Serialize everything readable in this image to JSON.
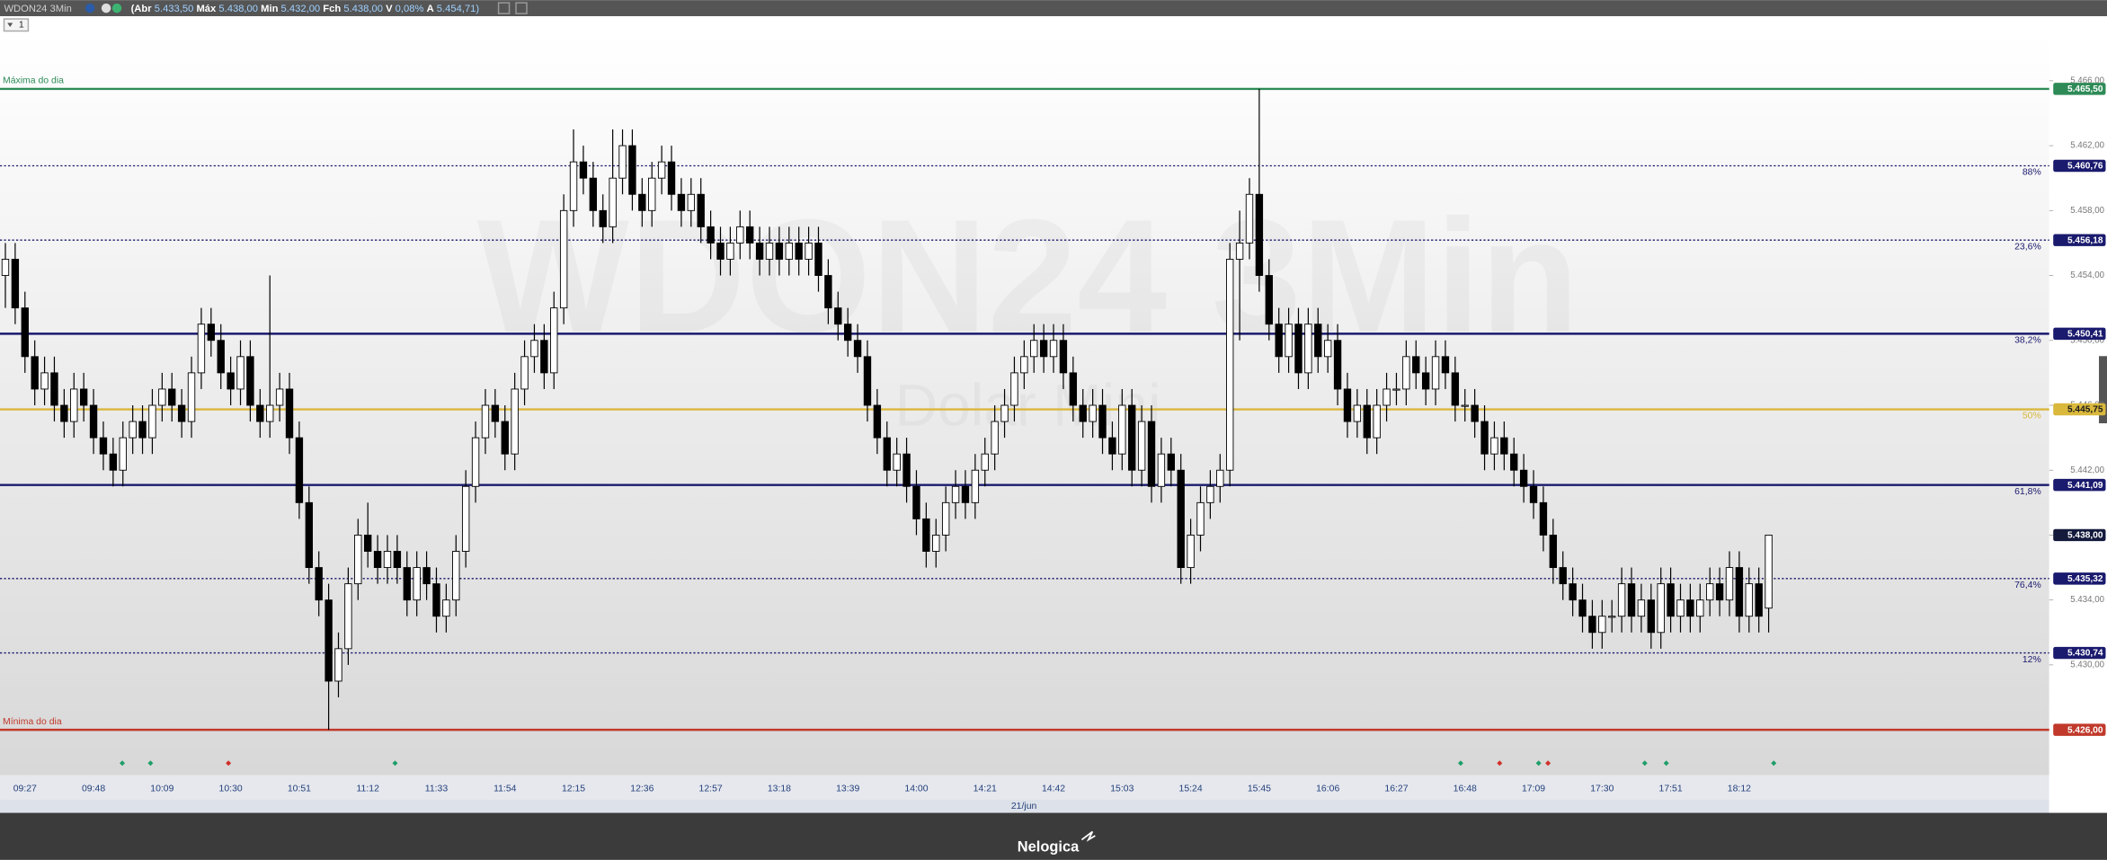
{
  "header": {
    "symbol": "WDON24 3Min",
    "open_label": "(Abr",
    "open": "5.433,50",
    "high_label": "Máx",
    "high": "5.438,00",
    "low_label": "Min",
    "low": "5.432,00",
    "close_label": "Fch",
    "close": "5.438,00",
    "var_label": "V",
    "var": "0,08%",
    "avg_label": "A",
    "avg": "5.454,71)"
  },
  "toolbar": {
    "button": "1"
  },
  "footer": {
    "brand": "Nelogica"
  },
  "chart_data": {
    "type": "candlestick",
    "watermark": "WDON24 3Min",
    "watermark_subtitle": "Dolar Mini",
    "date_label": "21/jun",
    "up_color": "#ffffff",
    "down_color": "#000000",
    "ylim": [
      5423.2,
      5468.9
    ],
    "yticks": [
      {
        "value": 5430,
        "label": "5.430,00"
      },
      {
        "value": 5434,
        "label": "5.434,00"
      },
      {
        "value": 5438,
        "label": "5.438,00"
      },
      {
        "value": 5442,
        "label": "5.442,00"
      },
      {
        "value": 5446,
        "label": "5.446,00"
      },
      {
        "value": 5450,
        "label": "5.450,00"
      },
      {
        "value": 5454,
        "label": "5.454,00"
      },
      {
        "value": 5458,
        "label": "5.458,00"
      },
      {
        "value": 5462,
        "label": "5.462,00"
      },
      {
        "value": 5466,
        "label": "5.466,00"
      }
    ],
    "levels": [
      {
        "name": "Máxima do dia",
        "value": 5465.5,
        "label": "5.465,50",
        "color": "#2e8b57",
        "style": "solid",
        "side": "left"
      },
      {
        "name": "88%",
        "value": 5460.76,
        "label": "5.460,76",
        "color": "#1a1a6e",
        "style": "dotted",
        "side": "right"
      },
      {
        "name": "23,6%",
        "value": 5456.18,
        "label": "5.456,18",
        "color": "#1a1a6e",
        "style": "dotted",
        "side": "right"
      },
      {
        "name": "38,2%",
        "value": 5450.41,
        "label": "5.450,41",
        "color": "#1a1a6e",
        "style": "solid",
        "side": "right"
      },
      {
        "name": "50%",
        "value": 5445.75,
        "label": "5.445,75",
        "color": "#d9b83c",
        "style": "solid",
        "side": "right"
      },
      {
        "name": "61,8%",
        "value": 5441.09,
        "label": "5.441,09",
        "color": "#1a1a6e",
        "style": "solid",
        "side": "right"
      },
      {
        "name": "76,4%",
        "value": 5435.32,
        "label": "5.435,32",
        "color": "#1a1a6e",
        "style": "dotted",
        "side": "right"
      },
      {
        "name": "12%",
        "value": 5430.74,
        "label": "5.430,74",
        "color": "#1a1a6e",
        "style": "dotted",
        "side": "right"
      },
      {
        "name": "Mínima do dia",
        "value": 5426,
        "label": "5.426,00",
        "color": "#c0392b",
        "style": "solid",
        "side": "left"
      }
    ],
    "last": {
      "value": 5438,
      "label": "5.438,00",
      "color": "#141a3c"
    },
    "categories": [
      null,
      null,
      "09:27",
      null,
      null,
      null,
      null,
      null,
      null,
      "09:48",
      null,
      null,
      null,
      null,
      null,
      null,
      "10:09",
      null,
      null,
      null,
      null,
      null,
      null,
      "10:30",
      null,
      null,
      null,
      null,
      null,
      null,
      "10:51",
      null,
      null,
      null,
      null,
      null,
      null,
      "11:12",
      null,
      null,
      null,
      null,
      null,
      null,
      "11:33",
      null,
      null,
      null,
      null,
      null,
      null,
      "11:54",
      null,
      null,
      null,
      null,
      null,
      null,
      "12:15",
      null,
      null,
      null,
      null,
      null,
      null,
      "12:36",
      null,
      null,
      null,
      null,
      null,
      null,
      "12:57",
      null,
      null,
      null,
      null,
      null,
      null,
      "13:18",
      null,
      null,
      null,
      null,
      null,
      null,
      "13:39",
      null,
      null,
      null,
      null,
      null,
      null,
      "14:00",
      null,
      null,
      null,
      null,
      null,
      null,
      "14:21",
      null,
      null,
      null,
      null,
      null,
      null,
      "14:42",
      null,
      null,
      null,
      null,
      null,
      null,
      "15:03",
      null,
      null,
      null,
      null,
      null,
      null,
      "15:24",
      null,
      null,
      null,
      null,
      null,
      null,
      "15:45",
      null,
      null,
      null,
      null,
      null,
      null,
      "16:06",
      null,
      null,
      null,
      null,
      null,
      null,
      "16:27",
      null,
      null,
      null,
      null,
      null,
      null,
      "16:48",
      null,
      null,
      null,
      null,
      null,
      null,
      "17:09",
      null,
      null,
      null,
      null,
      null,
      null,
      "17:30",
      null,
      null,
      null,
      null,
      null,
      null,
      "17:51",
      null,
      null,
      null,
      null,
      null,
      null,
      "18:12",
      null,
      null,
      null
    ],
    "open": [
      5454,
      5455,
      5452,
      5449,
      5447,
      5448,
      5446,
      5445,
      5447,
      5446,
      5444,
      5443,
      5442,
      5444,
      5445,
      5444,
      5446,
      5447,
      5446,
      5445,
      5448,
      5451,
      5450,
      5448,
      5447,
      5449,
      5446,
      5445,
      5446,
      5447,
      5444,
      5440,
      5436,
      5434,
      5429,
      5431,
      5435,
      5438,
      5437,
      5436,
      5437,
      5436,
      5434,
      5436,
      5435,
      5433,
      5434,
      5437,
      5441,
      5444,
      5446,
      5445,
      5443,
      5447,
      5449,
      5450,
      5448,
      5452,
      5458,
      5461,
      5460,
      5458,
      5457,
      5460,
      5462,
      5459,
      5458,
      5460,
      5461,
      5459,
      5458,
      5459,
      5457,
      5456,
      5455,
      5456,
      5457,
      5456,
      5455,
      5456,
      5455,
      5456,
      5455,
      5456,
      5454,
      5452,
      5451,
      5450,
      5449,
      5446,
      5444,
      5442,
      5443,
      5441,
      5439,
      5437,
      5438,
      5440,
      5441,
      5440,
      5442,
      5443,
      5445,
      5446,
      5448,
      5449,
      5450,
      5449,
      5450,
      5448,
      5446,
      5445,
      5446,
      5444,
      5443,
      5446,
      5442,
      5445,
      5441,
      5443,
      5442,
      5436,
      5438,
      5440,
      5441,
      5442,
      5455,
      5456,
      5459,
      5454,
      5451,
      5449,
      5451,
      5448,
      5451,
      5449,
      5450,
      5447,
      5445,
      5446,
      5444,
      5446,
      5447,
      5447,
      5449,
      5448,
      5447,
      5449,
      5448,
      5446,
      5446,
      5445,
      5443,
      5444,
      5443,
      5442,
      5441,
      5440,
      5438,
      5436,
      5435,
      5434,
      5433,
      5432,
      5433,
      5433,
      5435,
      5433,
      5434,
      5432,
      5435,
      5433,
      5434,
      5433,
      5434,
      5435,
      5434,
      5436,
      5433,
      5435,
      5433.5
    ],
    "high": [
      5456,
      5456,
      5453,
      5450,
      5449,
      5449,
      5447,
      5448,
      5448,
      5447,
      5445,
      5444,
      5445,
      5446,
      5446,
      5447,
      5448,
      5448,
      5447,
      5449,
      5452,
      5452,
      5451,
      5449,
      5450,
      5450,
      5447,
      5454,
      5448,
      5448,
      5445,
      5441,
      5437,
      5435,
      5432,
      5436,
      5439,
      5440,
      5438,
      5438,
      5438,
      5437,
      5437,
      5437,
      5436,
      5435,
      5438,
      5442,
      5445,
      5447,
      5447,
      5446,
      5448,
      5450,
      5451,
      5451,
      5453,
      5459,
      5463,
      5462,
      5461,
      5459,
      5463,
      5463,
      5463,
      5460,
      5461,
      5462,
      5462,
      5460,
      5460,
      5460,
      5458,
      5457,
      5457,
      5458,
      5458,
      5457,
      5457,
      5457,
      5457,
      5457,
      5457,
      5457,
      5455,
      5453,
      5452,
      5451,
      5450,
      5447,
      5445,
      5444,
      5444,
      5442,
      5440,
      5439,
      5441,
      5442,
      5442,
      5443,
      5444,
      5446,
      5447,
      5449,
      5450,
      5451,
      5451,
      5451,
      5451,
      5449,
      5447,
      5447,
      5447,
      5445,
      5447,
      5447,
      5446,
      5446,
      5444,
      5444,
      5443,
      5439,
      5441,
      5442,
      5443,
      5456,
      5458,
      5460,
      5465.5,
      5455,
      5452,
      5452,
      5452,
      5452,
      5452,
      5451,
      5451,
      5448,
      5447,
      5447,
      5447,
      5448,
      5448,
      5450,
      5450,
      5449,
      5450,
      5450,
      5449,
      5447,
      5447,
      5446,
      5445,
      5445,
      5444,
      5443,
      5442,
      5441,
      5439,
      5437,
      5436,
      5435,
      5434,
      5434,
      5434,
      5436,
      5436,
      5435,
      5435,
      5436,
      5436,
      5435,
      5435,
      5435,
      5436,
      5436,
      5437,
      5437,
      5436,
      5436,
      5438
    ],
    "low": [
      5452,
      5451,
      5448,
      5446,
      5446,
      5445,
      5444,
      5444,
      5445,
      5443,
      5442,
      5441,
      5441,
      5443,
      5443,
      5443,
      5445,
      5445,
      5444,
      5444,
      5447,
      5449,
      5447,
      5446,
      5446,
      5445,
      5444,
      5444,
      5445,
      5443,
      5439,
      5435,
      5433,
      5426,
      5428,
      5430,
      5434,
      5436,
      5435,
      5435,
      5435,
      5433,
      5433,
      5434,
      5432,
      5432,
      5433,
      5436,
      5440,
      5443,
      5444,
      5442,
      5442,
      5446,
      5448,
      5447,
      5447,
      5451,
      5457,
      5459,
      5457,
      5456,
      5456,
      5459,
      5458,
      5457,
      5457,
      5459,
      5458,
      5457,
      5457,
      5456,
      5455,
      5454,
      5454,
      5455,
      5455,
      5454,
      5454,
      5454,
      5454,
      5454,
      5454,
      5453,
      5451,
      5450,
      5449,
      5448,
      5445,
      5443,
      5441,
      5441,
      5440,
      5438,
      5436,
      5436,
      5437,
      5439,
      5439,
      5439,
      5441,
      5442,
      5444,
      5445,
      5447,
      5448,
      5448,
      5448,
      5447,
      5445,
      5444,
      5444,
      5443,
      5442,
      5442,
      5441,
      5441,
      5440,
      5440,
      5441,
      5435,
      5435,
      5437,
      5439,
      5440,
      5441,
      5450,
      5455,
      5453,
      5450,
      5448,
      5448,
      5447,
      5447,
      5448,
      5448,
      5446,
      5444,
      5444,
      5443,
      5443,
      5445,
      5446,
      5446,
      5447,
      5446,
      5446,
      5447,
      5445,
      5445,
      5444,
      5442,
      5442,
      5442,
      5441,
      5440,
      5439,
      5437,
      5435,
      5434,
      5433,
      5432,
      5431,
      5431,
      5432,
      5432,
      5432,
      5432,
      5431,
      5431,
      5432,
      5432,
      5432,
      5432,
      5433,
      5433,
      5433,
      5432,
      5432,
      5432,
      5432
    ],
    "close": [
      5455,
      5452,
      5449,
      5447,
      5448,
      5446,
      5445,
      5447,
      5446,
      5444,
      5443,
      5442,
      5444,
      5445,
      5444,
      5446,
      5447,
      5446,
      5445,
      5448,
      5451,
      5450,
      5448,
      5447,
      5449,
      5446,
      5445,
      5446,
      5447,
      5444,
      5440,
      5436,
      5434,
      5429,
      5431,
      5435,
      5438,
      5437,
      5436,
      5437,
      5436,
      5434,
      5436,
      5435,
      5433,
      5434,
      5437,
      5441,
      5444,
      5446,
      5445,
      5443,
      5447,
      5449,
      5450,
      5448,
      5452,
      5458,
      5461,
      5460,
      5458,
      5457,
      5460,
      5462,
      5459,
      5458,
      5460,
      5461,
      5459,
      5458,
      5459,
      5457,
      5456,
      5455,
      5456,
      5457,
      5456,
      5455,
      5456,
      5455,
      5456,
      5455,
      5456,
      5454,
      5452,
      5451,
      5450,
      5449,
      5446,
      5444,
      5442,
      5443,
      5441,
      5439,
      5437,
      5438,
      5440,
      5441,
      5440,
      5442,
      5443,
      5445,
      5446,
      5448,
      5449,
      5450,
      5449,
      5450,
      5448,
      5446,
      5445,
      5446,
      5444,
      5443,
      5446,
      5442,
      5445,
      5441,
      5443,
      5442,
      5436,
      5438,
      5440,
      5441,
      5442,
      5455,
      5456,
      5459,
      5454,
      5451,
      5449,
      5451,
      5448,
      5451,
      5449,
      5450,
      5447,
      5445,
      5446,
      5444,
      5446,
      5447,
      5447,
      5449,
      5448,
      5447,
      5449,
      5448,
      5446,
      5446,
      5445,
      5443,
      5444,
      5443,
      5442,
      5441,
      5440,
      5438,
      5436,
      5435,
      5434,
      5433,
      5432,
      5433,
      5433,
      5435,
      5433,
      5434,
      5432,
      5435,
      5433,
      5434,
      5433,
      5434,
      5435,
      5434,
      5436,
      5433,
      5435,
      5433,
      5438
    ]
  }
}
